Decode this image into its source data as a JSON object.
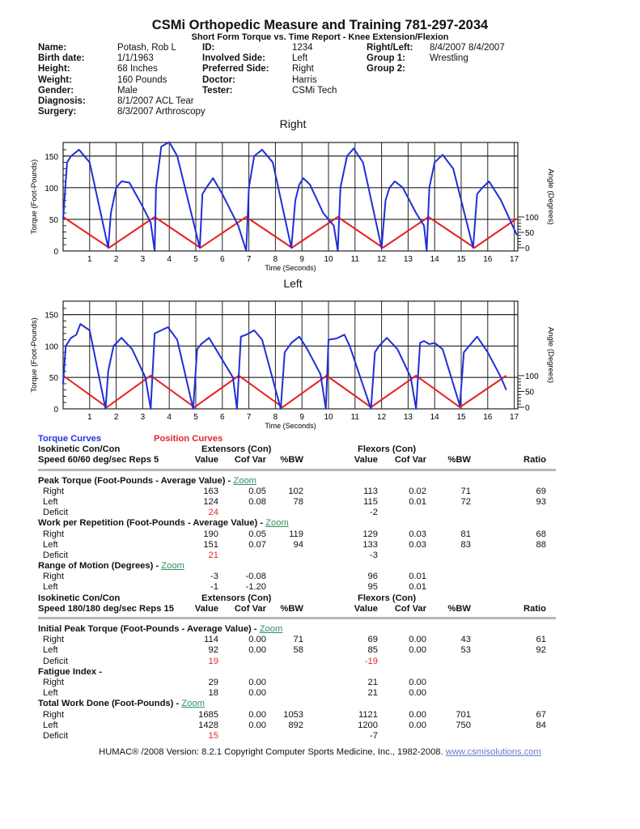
{
  "header": {
    "title": "CSMi Orthopedic Measure and Training 781-297-2034",
    "subtitle": "Short Form Torque vs. Time Report - Knee Extension/Flexion"
  },
  "patient": {
    "col1": [
      {
        "label": "Name:",
        "value": "Potash, Rob L"
      },
      {
        "label": "Birth date:",
        "value": "1/1/1963"
      },
      {
        "label": "Height:",
        "value": "68 Inches"
      },
      {
        "label": "Weight:",
        "value": "160 Pounds"
      },
      {
        "label": "Gender:",
        "value": "Male"
      },
      {
        "label": "Diagnosis:",
        "value": "8/1/2007 ACL Tear"
      },
      {
        "label": "Surgery:",
        "value": "8/3/2007 Arthroscopy"
      }
    ],
    "col2": [
      {
        "label": "ID:",
        "value": "1234"
      },
      {
        "label": "Involved Side:",
        "value": "Left"
      },
      {
        "label": "Preferred Side:",
        "value": "Right"
      },
      {
        "label": "Doctor:",
        "value": "Harris"
      },
      {
        "label": "Tester:",
        "value": "CSMi Tech"
      }
    ],
    "col3": [
      {
        "label": "Right/Left:",
        "value": "8/4/2007 8/4/2007"
      },
      {
        "label": "Group 1:",
        "value": "Wrestling"
      },
      {
        "label": "Group 2:",
        "value": ""
      }
    ]
  },
  "chart_data": [
    {
      "type": "line",
      "title": "Right",
      "xlabel": "Time (Seconds)",
      "ylabel": "Torque (Foot-Pounds)",
      "y2label": "Angle (Degrees)",
      "xlim": [
        0,
        17.1
      ],
      "ylim": [
        0,
        175
      ],
      "xticks": [
        1,
        2,
        3,
        4,
        5,
        6,
        7,
        8,
        9,
        10,
        11,
        12,
        13,
        14,
        15,
        16,
        17
      ],
      "yticks": [
        0,
        50,
        100,
        150
      ],
      "y2ticks": [
        0,
        50,
        100
      ],
      "grid": true,
      "colors": {
        "torque": "#1f2fd6",
        "position": "#e8201c"
      },
      "torque": [
        [
          0,
          50
        ],
        [
          0.15,
          140
        ],
        [
          0.3,
          150
        ],
        [
          0.6,
          160
        ],
        [
          1.0,
          140
        ],
        [
          1.7,
          5
        ],
        [
          1.8,
          60
        ],
        [
          2.0,
          100
        ],
        [
          2.2,
          110
        ],
        [
          2.5,
          108
        ],
        [
          3.0,
          70
        ],
        [
          3.3,
          45
        ],
        [
          3.45,
          0
        ],
        [
          3.5,
          100
        ],
        [
          3.7,
          165
        ],
        [
          4.0,
          172
        ],
        [
          4.3,
          150
        ],
        [
          5.15,
          5
        ],
        [
          5.25,
          90
        ],
        [
          5.4,
          100
        ],
        [
          5.65,
          115
        ],
        [
          6.0,
          90
        ],
        [
          6.6,
          40
        ],
        [
          6.9,
          0
        ],
        [
          7.0,
          100
        ],
        [
          7.2,
          150
        ],
        [
          7.5,
          160
        ],
        [
          7.9,
          140
        ],
        [
          8.6,
          5
        ],
        [
          8.75,
          80
        ],
        [
          8.9,
          105
        ],
        [
          9.05,
          115
        ],
        [
          9.3,
          105
        ],
        [
          9.8,
          60
        ],
        [
          10.2,
          40
        ],
        [
          10.35,
          0
        ],
        [
          10.45,
          100
        ],
        [
          10.7,
          150
        ],
        [
          10.95,
          162
        ],
        [
          11.3,
          140
        ],
        [
          12.0,
          5
        ],
        [
          12.15,
          80
        ],
        [
          12.3,
          100
        ],
        [
          12.5,
          110
        ],
        [
          12.8,
          100
        ],
        [
          13.3,
          60
        ],
        [
          13.6,
          40
        ],
        [
          13.7,
          0
        ],
        [
          13.8,
          100
        ],
        [
          14.0,
          140
        ],
        [
          14.3,
          152
        ],
        [
          14.7,
          130
        ],
        [
          15.45,
          5
        ],
        [
          15.6,
          90
        ],
        [
          15.8,
          100
        ],
        [
          16.05,
          110
        ],
        [
          16.5,
          80
        ],
        [
          17.1,
          25
        ]
      ],
      "position": [
        [
          0,
          100
        ],
        [
          1.73,
          0
        ],
        [
          3.45,
          100
        ],
        [
          5.17,
          0
        ],
        [
          6.9,
          100
        ],
        [
          8.62,
          0
        ],
        [
          10.35,
          100
        ],
        [
          12.05,
          0
        ],
        [
          13.77,
          100
        ],
        [
          15.5,
          0
        ],
        [
          17.1,
          95
        ]
      ]
    },
    {
      "type": "line",
      "title": "Left",
      "xlabel": "Time (Seconds)",
      "ylabel": "Torque (Foot-Pounds)",
      "y2label": "Angle (Degrees)",
      "xlim": [
        0,
        17.1
      ],
      "ylim": [
        0,
        175
      ],
      "xticks": [
        1,
        2,
        3,
        4,
        5,
        6,
        7,
        8,
        9,
        10,
        11,
        12,
        13,
        14,
        15,
        16,
        17
      ],
      "yticks": [
        0,
        50,
        100,
        150
      ],
      "y2ticks": [
        0,
        50,
        100
      ],
      "grid": true,
      "colors": {
        "torque": "#1f2fd6",
        "position": "#e8201c"
      },
      "torque": [
        [
          0,
          40
        ],
        [
          0.1,
          100
        ],
        [
          0.3,
          113
        ],
        [
          0.5,
          118
        ],
        [
          0.65,
          135
        ],
        [
          1.0,
          125
        ],
        [
          1.6,
          0
        ],
        [
          1.7,
          60
        ],
        [
          1.9,
          100
        ],
        [
          2.2,
          113
        ],
        [
          2.6,
          95
        ],
        [
          3.1,
          50
        ],
        [
          3.3,
          0
        ],
        [
          3.45,
          120
        ],
        [
          3.7,
          125
        ],
        [
          3.95,
          130
        ],
        [
          4.3,
          110
        ],
        [
          4.9,
          0
        ],
        [
          5.05,
          95
        ],
        [
          5.2,
          103
        ],
        [
          5.5,
          113
        ],
        [
          5.9,
          85
        ],
        [
          6.4,
          50
        ],
        [
          6.55,
          0
        ],
        [
          6.7,
          115
        ],
        [
          6.9,
          118
        ],
        [
          7.2,
          125
        ],
        [
          7.5,
          110
        ],
        [
          8.2,
          0
        ],
        [
          8.35,
          90
        ],
        [
          8.6,
          105
        ],
        [
          8.9,
          115
        ],
        [
          9.2,
          95
        ],
        [
          9.7,
          55
        ],
        [
          9.9,
          0
        ],
        [
          10.0,
          110
        ],
        [
          10.3,
          112
        ],
        [
          10.6,
          118
        ],
        [
          10.8,
          100
        ],
        [
          11.6,
          0
        ],
        [
          11.75,
          90
        ],
        [
          11.9,
          100
        ],
        [
          12.2,
          113
        ],
        [
          12.6,
          95
        ],
        [
          13.1,
          50
        ],
        [
          13.3,
          0
        ],
        [
          13.45,
          105
        ],
        [
          13.6,
          108
        ],
        [
          13.8,
          103
        ],
        [
          14.0,
          105
        ],
        [
          14.3,
          95
        ],
        [
          14.95,
          5
        ],
        [
          15.1,
          90
        ],
        [
          15.3,
          100
        ],
        [
          15.6,
          115
        ],
        [
          16.0,
          90
        ],
        [
          16.5,
          50
        ],
        [
          16.7,
          30
        ]
      ],
      "position": [
        [
          0,
          100
        ],
        [
          1.65,
          0
        ],
        [
          3.3,
          100
        ],
        [
          4.95,
          0
        ],
        [
          6.62,
          100
        ],
        [
          8.27,
          0
        ],
        [
          9.93,
          100
        ],
        [
          11.6,
          0
        ],
        [
          13.3,
          100
        ],
        [
          14.95,
          0
        ],
        [
          16.7,
          100
        ]
      ]
    }
  ],
  "legend": {
    "torque": "Torque Curves",
    "position": "Position Curves"
  },
  "sections": [
    {
      "test": "Isokinetic Con/Con",
      "speed": "Speed 60/60 deg/sec Reps 5",
      "ext": "Extensors (Con)",
      "flex": "Flexors (Con)",
      "cols": [
        "Value",
        "Cof Var",
        "%BW",
        "Value",
        "Cof Var",
        "%BW",
        "Ratio"
      ],
      "groups": [
        {
          "title": "Peak Torque (Foot-Pounds - Average Value) - ",
          "link": "Zoom",
          "rows": [
            [
              "Right",
              "163",
              "0.05",
              "102",
              "113",
              "0.02",
              "71",
              "69"
            ],
            [
              "Left",
              "124",
              "0.08",
              "78",
              "115",
              "0.01",
              "72",
              "93"
            ],
            [
              "Deficit",
              "24",
              "",
              "",
              "-2",
              "",
              "",
              ""
            ]
          ],
          "redDeficitExt": true,
          "redDeficitFlex": false
        },
        {
          "title": "Work per Repetition (Foot-Pounds - Average Value) - ",
          "link": "Zoom",
          "rows": [
            [
              "Right",
              "190",
              "0.05",
              "119",
              "129",
              "0.03",
              "81",
              "68"
            ],
            [
              "Left",
              "151",
              "0.07",
              "94",
              "133",
              "0.03",
              "83",
              "88"
            ],
            [
              "Deficit",
              "21",
              "",
              "",
              "-3",
              "",
              "",
              ""
            ]
          ],
          "redDeficitExt": true,
          "redDeficitFlex": false
        },
        {
          "title": "Range of Motion (Degrees) - ",
          "link": "Zoom",
          "rows": [
            [
              "Right",
              "-3",
              "-0.08",
              "",
              "96",
              "0.01",
              "",
              ""
            ],
            [
              "Left",
              "-1",
              "-1.20",
              "",
              "95",
              "0.01",
              "",
              ""
            ]
          ]
        }
      ]
    },
    {
      "test": "Isokinetic Con/Con",
      "speed": "Speed 180/180 deg/sec Reps 15",
      "ext": "Extensors (Con)",
      "flex": "Flexors (Con)",
      "cols": [
        "Value",
        "Cof Var",
        "%BW",
        "Value",
        "Cof Var",
        "%BW",
        "Ratio"
      ],
      "groups": [
        {
          "title": "Initial Peak Torque (Foot-Pounds - Average Value) - ",
          "link": "Zoom",
          "rows": [
            [
              "Right",
              "114",
              "0.00",
              "71",
              "69",
              "0.00",
              "43",
              "61"
            ],
            [
              "Left",
              "92",
              "0.00",
              "58",
              "85",
              "0.00",
              "53",
              "92"
            ],
            [
              "Deficit",
              "19",
              "",
              "",
              "-19",
              "",
              "",
              ""
            ]
          ],
          "redDeficitExt": true,
          "redDeficitFlex": true
        },
        {
          "title": "Fatigue Index - ",
          "link": "",
          "rows": [
            [
              "Right",
              "29",
              "0.00",
              "",
              "21",
              "0.00",
              "",
              ""
            ],
            [
              "Left",
              "18",
              "0.00",
              "",
              "21",
              "0.00",
              "",
              ""
            ]
          ]
        },
        {
          "title": "Total Work Done (Foot-Pounds) - ",
          "link": "Zoom",
          "rows": [
            [
              "Right",
              "1685",
              "0.00",
              "1053",
              "1121",
              "0.00",
              "701",
              "67"
            ],
            [
              "Left",
              "1428",
              "0.00",
              "892",
              "1200",
              "0.00",
              "750",
              "84"
            ],
            [
              "Deficit",
              "15",
              "",
              "",
              "-7",
              "",
              "",
              ""
            ]
          ],
          "redDeficitExt": true,
          "redDeficitFlex": false
        }
      ]
    }
  ],
  "footer": {
    "text": "HUMAC® /2008 Version: 8.2.1 Copyright Computer Sports Medicine, Inc., 1982-2008. ",
    "link": "www.csmisolutions.com"
  }
}
